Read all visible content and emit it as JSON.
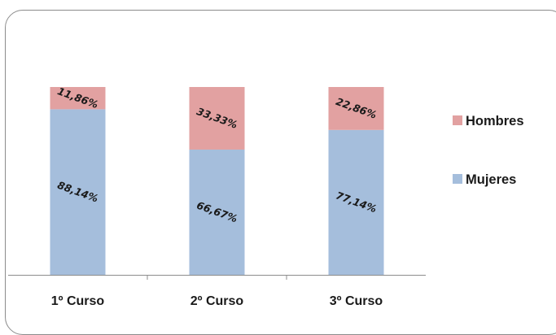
{
  "chart_data": {
    "type": "bar",
    "stacked": true,
    "normalized_100_percent": true,
    "categories": [
      "1º Curso",
      "2º Curso",
      "3º Curso"
    ],
    "series": [
      {
        "name": "Mujeres",
        "values": [
          88.14,
          66.67,
          77.14
        ],
        "labels": [
          "88,14%",
          "66,67%",
          "77,14%"
        ],
        "color": "#a5bedc"
      },
      {
        "name": "Hombres",
        "values": [
          11.86,
          33.33,
          22.86
        ],
        "labels": [
          "11,86%",
          "33,33%",
          "22,86%"
        ],
        "color": "#e2a1a1"
      }
    ],
    "legend": {
      "position": "right",
      "order": [
        "Hombres",
        "Mujeres"
      ]
    },
    "ylim": [
      0,
      100
    ],
    "grid": false,
    "title": "",
    "xlabel": "",
    "ylabel": ""
  }
}
